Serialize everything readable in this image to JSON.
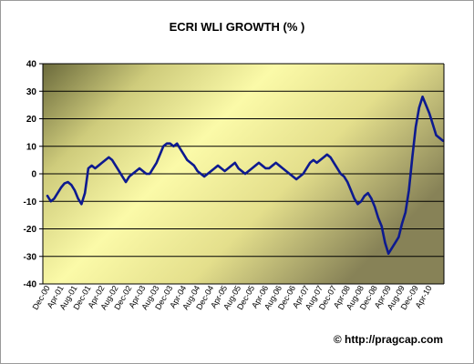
{
  "chart_data": {
    "type": "line",
    "title": "ECRI WLI GROWTH (% )",
    "xlabel": "",
    "ylabel": "",
    "ylim": [
      -40,
      40
    ],
    "yticks": [
      -40,
      -30,
      -20,
      -10,
      0,
      10,
      20,
      30,
      40
    ],
    "grid": true,
    "x_tick_labels": [
      "Dec-00",
      "Apr-01",
      "Aug-01",
      "Dec-01",
      "Apr-02",
      "Aug-02",
      "Dec-02",
      "Apr-03",
      "Aug-03",
      "Dec-03",
      "Apr-04",
      "Aug-04",
      "Dec-04",
      "Apr-05",
      "Aug-05",
      "Dec-05",
      "Apr-06",
      "Aug-06",
      "Dec-06",
      "Apr-07",
      "Aug-07",
      "Dec-07",
      "Apr-08",
      "Aug-08",
      "Dec-08",
      "Apr-09",
      "Aug-09",
      "Dec-09",
      "Apr-10"
    ],
    "series": [
      {
        "color": "#0d1a8f",
        "values": [
          -8,
          -10,
          -9,
          -7,
          -5,
          -3.5,
          -3,
          -4,
          -6,
          -9,
          -11,
          -7,
          2,
          3,
          2,
          3,
          4,
          5,
          6,
          5,
          3,
          1,
          -1,
          -3,
          -1,
          0,
          1,
          2,
          1,
          0,
          0,
          2,
          4,
          7,
          10,
          11,
          11,
          10,
          11,
          9,
          7,
          5,
          4,
          3,
          1,
          0,
          -1,
          0,
          1,
          2,
          3,
          2,
          1,
          2,
          3,
          4,
          2,
          1,
          0,
          1,
          2,
          3,
          4,
          3,
          2,
          2,
          3,
          4,
          3,
          2,
          1,
          0,
          -1,
          -2,
          -1,
          0,
          2,
          4,
          5,
          4,
          5,
          6,
          7,
          6,
          4,
          2,
          0,
          -1,
          -3,
          -6,
          -9,
          -11,
          -10,
          -8,
          -7,
          -9,
          -12,
          -16,
          -19,
          -25,
          -29,
          -27,
          -25,
          -23,
          -18,
          -14,
          -6,
          6,
          17,
          24,
          28,
          25,
          22,
          18,
          14,
          13,
          12
        ]
      }
    ],
    "watermark": "© http://pragcap.com"
  }
}
